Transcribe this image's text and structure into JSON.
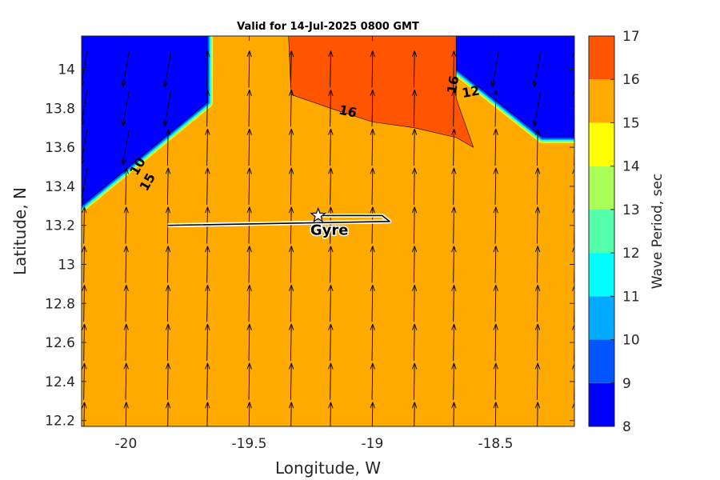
{
  "chart_data": {
    "type": "heatmap",
    "title": "Valid for 14-Jul-2025 0800 GMT",
    "xlabel": "Longitude, W",
    "ylabel": "Latitude, N",
    "colorbar_label": "Wave Period, sec",
    "xlim": [
      -20.18,
      -18.18
    ],
    "ylim": [
      12.17,
      14.17
    ],
    "xticks": [
      -20,
      -19.5,
      -19,
      -18.5
    ],
    "xtick_labels": [
      "-20",
      "-19.5",
      "-19",
      "-18.5"
    ],
    "yticks": [
      12.2,
      12.4,
      12.6,
      12.8,
      13,
      13.2,
      13.4,
      13.6,
      13.8,
      14
    ],
    "ytick_labels": [
      "12.2",
      "12.4",
      "12.6",
      "12.8",
      "13",
      "13.2",
      "13.4",
      "13.6",
      "13.8",
      "14"
    ],
    "colorbar_ticks": [
      8,
      9,
      10,
      11,
      12,
      13,
      14,
      15,
      16,
      17
    ],
    "colorbar_tick_labels": [
      "8",
      "9",
      "10",
      "11",
      "12",
      "13",
      "14",
      "15",
      "16",
      "17"
    ],
    "levels": [
      {
        "from": 8,
        "to": 9,
        "color": "#0000ff"
      },
      {
        "from": 9,
        "to": 10,
        "color": "#0055ff"
      },
      {
        "from": 10,
        "to": 11,
        "color": "#00aaff"
      },
      {
        "from": 11,
        "to": 12,
        "color": "#00ffff"
      },
      {
        "from": 12,
        "to": 13,
        "color": "#55ffaa"
      },
      {
        "from": 13,
        "to": 14,
        "color": "#aaff55"
      },
      {
        "from": 14,
        "to": 15,
        "color": "#ffff00"
      },
      {
        "from": 15,
        "to": 16,
        "color": "#ffaa00"
      },
      {
        "from": 16,
        "to": 17,
        "color": "#ff5500"
      }
    ],
    "regions": [
      {
        "name": "low-period-west",
        "period_range": [
          8,
          9
        ],
        "color": "#0000ff",
        "polygon": [
          [
            -20.18,
            14.17
          ],
          [
            -19.67,
            14.17
          ],
          [
            -19.67,
            13.83
          ],
          [
            -20.18,
            13.3
          ]
        ]
      },
      {
        "name": "low-period-east",
        "period_range": [
          8,
          9
        ],
        "color": "#0000ff",
        "polygon": [
          [
            -18.66,
            14.17
          ],
          [
            -18.18,
            14.17
          ],
          [
            -18.18,
            13.65
          ],
          [
            -18.31,
            13.65
          ],
          [
            -18.66,
            14.0
          ]
        ]
      },
      {
        "name": "high-period-north",
        "period_range": [
          16,
          17
        ],
        "color": "#ff5500",
        "polygon": [
          [
            -19.34,
            14.17
          ],
          [
            -18.66,
            14.17
          ],
          [
            -18.66,
            13.85
          ],
          [
            -18.59,
            13.6
          ],
          [
            -18.66,
            13.65
          ],
          [
            -18.83,
            13.7
          ],
          [
            -19.0,
            13.73
          ],
          [
            -19.17,
            13.8
          ],
          [
            -19.33,
            13.87
          ]
        ]
      }
    ],
    "contour_labels": [
      {
        "text": "16",
        "lon": -19.1,
        "lat": 13.78,
        "angle": 12
      },
      {
        "text": "10",
        "lon": -19.95,
        "lat": 13.5,
        "angle": -60
      },
      {
        "text": "15",
        "lon": -19.91,
        "lat": 13.42,
        "angle": -60
      },
      {
        "text": "16",
        "lon": -18.67,
        "lat": 13.92,
        "angle": -80
      },
      {
        "text": "12",
        "lon": -18.6,
        "lat": 13.88,
        "angle": -10
      }
    ],
    "direction_arrows": {
      "grid_lon": [
        -20.17,
        -20.0,
        -19.83,
        -19.67,
        -19.5,
        -19.33,
        -19.17,
        -19.0,
        -18.83,
        -18.67,
        -18.5,
        -18.33,
        -18.18
      ],
      "grid_lat": [
        12.2,
        12.4,
        12.6,
        12.8,
        13.0,
        13.2,
        13.4,
        13.6,
        13.8,
        14.0
      ],
      "direction_in_low_period": "south-southwest",
      "direction_elsewhere": "north"
    },
    "track": {
      "name": "Gyre",
      "label": "Gyre",
      "points": [
        [
          -19.83,
          13.2
        ],
        [
          -18.93,
          13.22
        ],
        [
          -18.96,
          13.25
        ],
        [
          -19.2,
          13.25
        ]
      ],
      "marker": {
        "lon": -19.22,
        "lat": 13.25,
        "symbol": "star"
      }
    }
  }
}
